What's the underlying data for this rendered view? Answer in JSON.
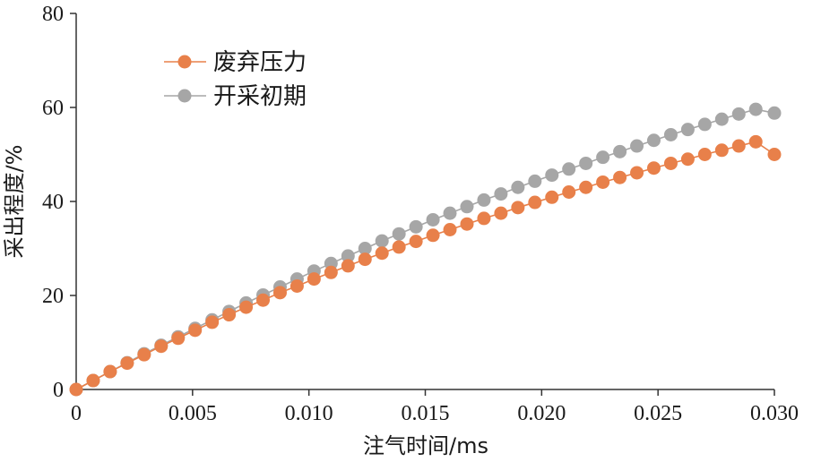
{
  "chart_data": {
    "type": "line",
    "title": "",
    "xlabel": "注气时间/ms",
    "ylabel": "采出程度/%",
    "xlim": [
      0,
      0.03
    ],
    "ylim": [
      0,
      80
    ],
    "xticks": [
      0,
      0.005,
      0.01,
      0.015,
      0.02,
      0.025,
      0.03
    ],
    "xtick_labels": [
      "0",
      "0.005",
      "0.010",
      "0.015",
      "0.020",
      "0.025",
      "0.030"
    ],
    "yticks": [
      0,
      20,
      40,
      60,
      80
    ],
    "ytick_labels": [
      "0",
      "20",
      "40",
      "60",
      "80"
    ],
    "grid": false,
    "legend_position": "top-left",
    "x": [
      0,
      0.00073,
      0.00146,
      0.00219,
      0.00292,
      0.00365,
      0.00438,
      0.00511,
      0.00584,
      0.00657,
      0.0073,
      0.00803,
      0.00876,
      0.00949,
      0.01022,
      0.01095,
      0.01168,
      0.01241,
      0.01314,
      0.01387,
      0.0146,
      0.01533,
      0.01606,
      0.01679,
      0.01752,
      0.01825,
      0.01898,
      0.01971,
      0.02044,
      0.02117,
      0.0219,
      0.02263,
      0.02336,
      0.02409,
      0.02482,
      0.02555,
      0.02628,
      0.02701,
      0.02774,
      0.02847,
      0.0292,
      0.03
    ],
    "series": [
      {
        "name": "废弃压力",
        "color": "#E8804A",
        "values": [
          0,
          1.9,
          3.8,
          5.6,
          7.4,
          9.2,
          10.9,
          12.6,
          14.3,
          15.9,
          17.5,
          19.0,
          20.6,
          22.0,
          23.5,
          24.9,
          26.3,
          27.7,
          29.0,
          30.3,
          31.5,
          32.8,
          34.0,
          35.2,
          36.4,
          37.5,
          38.7,
          39.8,
          40.9,
          42.0,
          43.0,
          44.1,
          45.1,
          46.1,
          47.1,
          48.1,
          49.0,
          50.0,
          50.9,
          51.8,
          52.7,
          50.0
        ]
      },
      {
        "name": "开采初期",
        "color": "#A6A6A6",
        "values": [
          0,
          1.9,
          3.8,
          5.7,
          7.6,
          9.4,
          11.2,
          13.0,
          14.8,
          16.6,
          18.4,
          20.1,
          21.8,
          23.5,
          25.2,
          26.8,
          28.4,
          30.0,
          31.6,
          33.1,
          34.6,
          36.1,
          37.5,
          38.9,
          40.3,
          41.6,
          43.0,
          44.3,
          45.6,
          46.9,
          48.1,
          49.4,
          50.6,
          51.8,
          53.0,
          54.2,
          55.3,
          56.4,
          57.5,
          58.6,
          59.6,
          58.8
        ]
      }
    ]
  }
}
